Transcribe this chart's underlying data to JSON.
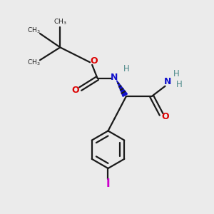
{
  "bg_color": "#ebebeb",
  "line_color": "#1a1a1a",
  "red_color": "#dd0000",
  "blue_color": "#1111cc",
  "teal_color": "#4a8888",
  "iodine_color": "#cc00cc",
  "lw": 1.6,
  "wedge_lw": 3.2,
  "xlim": [
    0,
    10
  ],
  "ylim": [
    0,
    10
  ]
}
